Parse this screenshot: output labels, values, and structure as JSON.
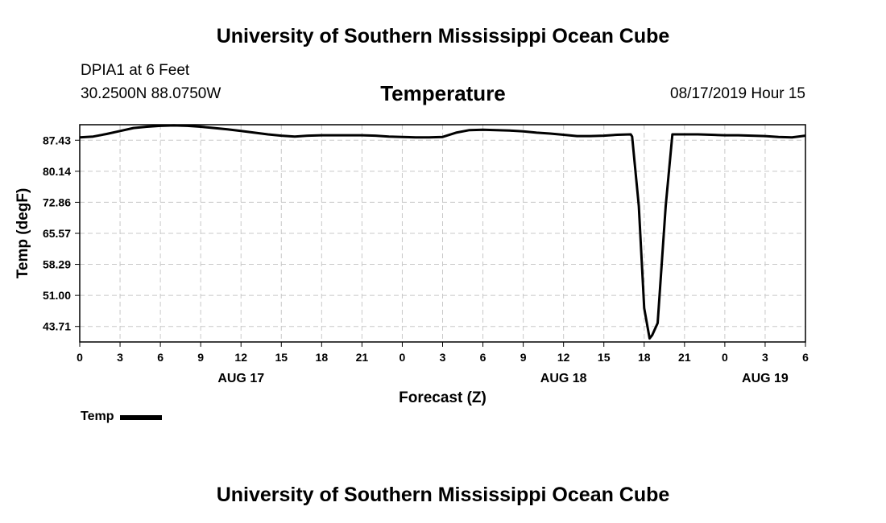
{
  "header": {
    "title": "University of Southern Mississippi Ocean Cube",
    "station": "DPIA1 at 6 Feet",
    "coordinates": "30.2500N 88.0750W",
    "variable": "Temperature",
    "datetime": "08/17/2019 Hour 15"
  },
  "footer": {
    "title": "University of Southern Mississippi Ocean Cube"
  },
  "legend": {
    "label": "Temp"
  },
  "chart_data": {
    "type": "line",
    "ylabel": "Temp (degF)",
    "xlabel": "Forecast (Z)",
    "ylim": [
      40.07,
      91.07
    ],
    "xlim": [
      0,
      54
    ],
    "grid": true,
    "yticks": [
      43.71,
      51.0,
      58.29,
      65.57,
      72.86,
      80.14,
      87.43
    ],
    "ytick_labels": [
      "43.71",
      "51.00",
      "58.29",
      "65.57",
      "72.86",
      "80.14",
      "87.43"
    ],
    "xticks": [
      0,
      3,
      6,
      9,
      12,
      15,
      18,
      21,
      24,
      27,
      30,
      33,
      36,
      39,
      42,
      45,
      48,
      51,
      54
    ],
    "xtick_labels": [
      "0",
      "3",
      "6",
      "9",
      "12",
      "15",
      "18",
      "21",
      "0",
      "3",
      "6",
      "9",
      "12",
      "15",
      "18",
      "21",
      "0",
      "3",
      "6"
    ],
    "day_labels": [
      {
        "x": 12,
        "label": "AUG 17"
      },
      {
        "x": 36,
        "label": "AUG 18"
      },
      {
        "x": 51,
        "label": "AUG 19"
      }
    ],
    "series": [
      {
        "name": "Temp",
        "color": "#000000",
        "x": [
          0,
          1,
          2,
          3,
          4,
          5,
          6,
          7,
          8,
          9,
          10,
          11,
          12,
          13,
          14,
          15,
          16,
          17,
          18,
          19,
          20,
          21,
          22,
          23,
          24,
          25,
          26,
          27,
          28,
          29,
          30,
          31,
          32,
          33,
          34,
          35,
          36,
          37,
          38,
          39,
          40,
          41,
          41.1,
          41.6,
          42.0,
          42.4,
          42.6,
          43.0,
          43.6,
          44.1,
          45,
          46,
          47,
          48,
          49,
          50,
          51,
          52,
          53,
          54
        ],
        "values": [
          88.1,
          88.3,
          88.9,
          89.6,
          90.3,
          90.6,
          90.8,
          90.9,
          90.8,
          90.6,
          90.3,
          90.0,
          89.6,
          89.2,
          88.8,
          88.5,
          88.3,
          88.5,
          88.6,
          88.6,
          88.6,
          88.6,
          88.5,
          88.3,
          88.2,
          88.1,
          88.1,
          88.2,
          89.2,
          89.8,
          89.9,
          89.8,
          89.7,
          89.5,
          89.2,
          89.0,
          88.7,
          88.4,
          88.4,
          88.5,
          88.7,
          88.8,
          88.3,
          72.0,
          48.0,
          40.9,
          41.7,
          44.5,
          72.0,
          88.8,
          88.8,
          88.8,
          88.7,
          88.6,
          88.6,
          88.5,
          88.4,
          88.2,
          88.1,
          88.5
        ]
      }
    ]
  }
}
